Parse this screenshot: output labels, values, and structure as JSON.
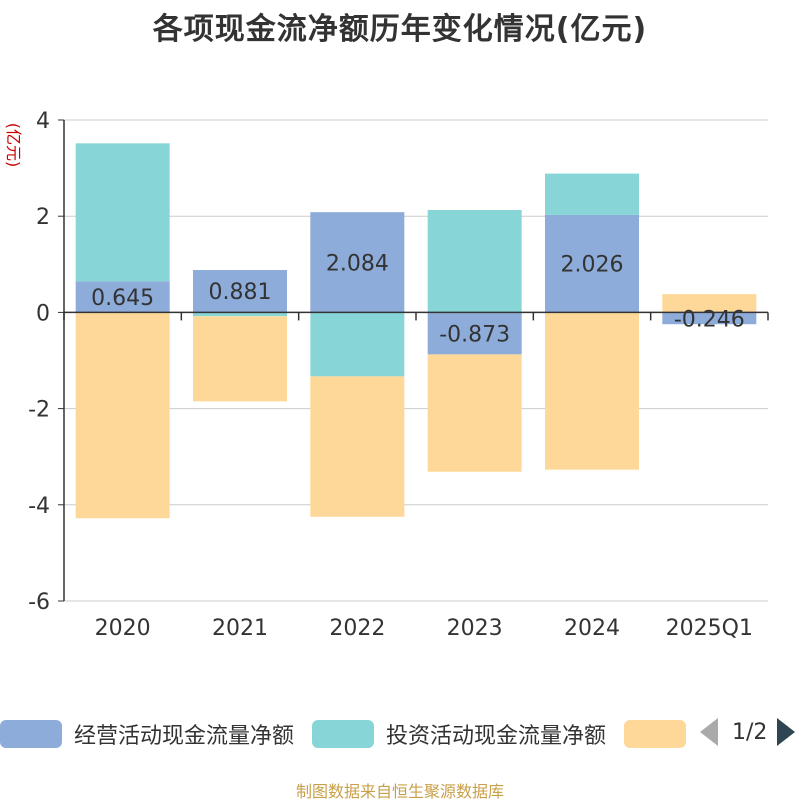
{
  "chart_data": {
    "type": "bar",
    "stacked": true,
    "title": "各项现金流净额历年变化情况(亿元)",
    "ylabel": "(亿元)",
    "ylim": [
      -6,
      4
    ],
    "yticks": [
      4,
      2,
      0,
      -2,
      -4,
      -6
    ],
    "grid": true,
    "legend_position": "bottom",
    "categories": [
      "2020",
      "2021",
      "2022",
      "2023",
      "2024",
      "2025Q1"
    ],
    "series": [
      {
        "name": "经营活动现金流量净额",
        "color": "#8eacda",
        "values": [
          0.645,
          0.881,
          2.084,
          -0.873,
          2.026,
          -0.246
        ],
        "labels": [
          "0.645",
          "0.881",
          "2.084",
          "-0.873",
          "2.026",
          "-0.246"
        ]
      },
      {
        "name": "投资活动现金流量净额",
        "color": "#88d5d7",
        "values": [
          2.87,
          -0.08,
          -1.33,
          2.13,
          0.86,
          0.0
        ]
      },
      {
        "name": "",
        "color": "#fed898",
        "values": [
          -4.28,
          -1.77,
          -2.92,
          -2.44,
          -3.27,
          0.38
        ]
      }
    ]
  },
  "pager": {
    "text": "1/2"
  },
  "source": "制图数据来自恒生聚源数据库"
}
